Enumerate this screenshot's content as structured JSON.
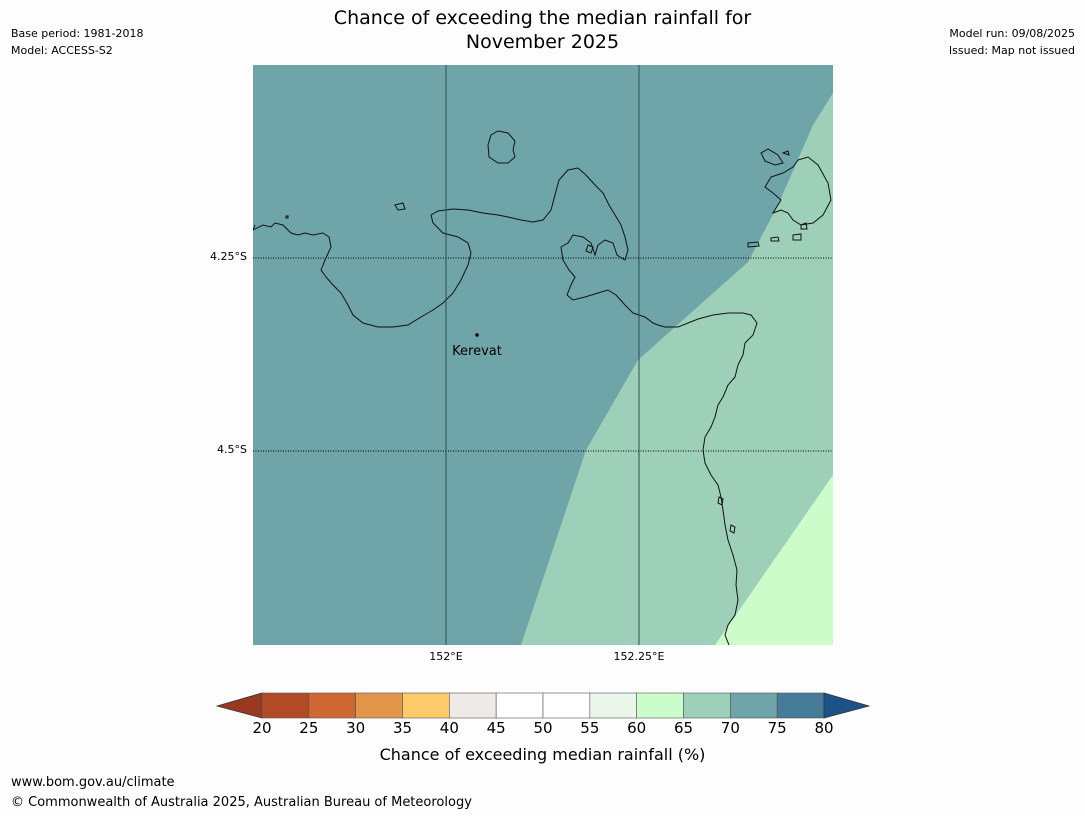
{
  "header": {
    "title_line1": "Chance of exceeding the median rainfall for",
    "title_line2": "November 2025",
    "base_period": "Base period: 1981-2018",
    "model": "Model: ACCESS-S2",
    "model_run": "Model run: 09/08/2025",
    "issued": "Issued: Map not issued"
  },
  "map": {
    "lat_labels": [
      "4.25°S",
      "4.5°S"
    ],
    "lon_labels": [
      "152°E",
      "152.25°E"
    ],
    "place": "Kerevat",
    "region_colors": {
      "band_70_75": "#6fa4a8",
      "band_65_70": "#9ed0b9",
      "band_60_65": "#ccfcca"
    }
  },
  "colorbar": {
    "label": "Chance of exceeding median rainfall (%)",
    "ticks": [
      "20",
      "25",
      "30",
      "35",
      "40",
      "45",
      "50",
      "55",
      "60",
      "65",
      "70",
      "75",
      "80"
    ],
    "colors": [
      "#b14a25",
      "#cf6733",
      "#e3954a",
      "#fdcb69",
      "#eeeae7",
      "#ffffff",
      "#ffffff",
      "#e9f6e9",
      "#ccfcca",
      "#9ed0b9",
      "#6fa4a8",
      "#467b99"
    ],
    "under_color": "#99391f",
    "over_color": "#1b5287"
  },
  "footer": {
    "url": "www.bom.gov.au/climate",
    "copyright": "© Commonwealth of Australia 2025, Australian Bureau of Meteorology"
  }
}
